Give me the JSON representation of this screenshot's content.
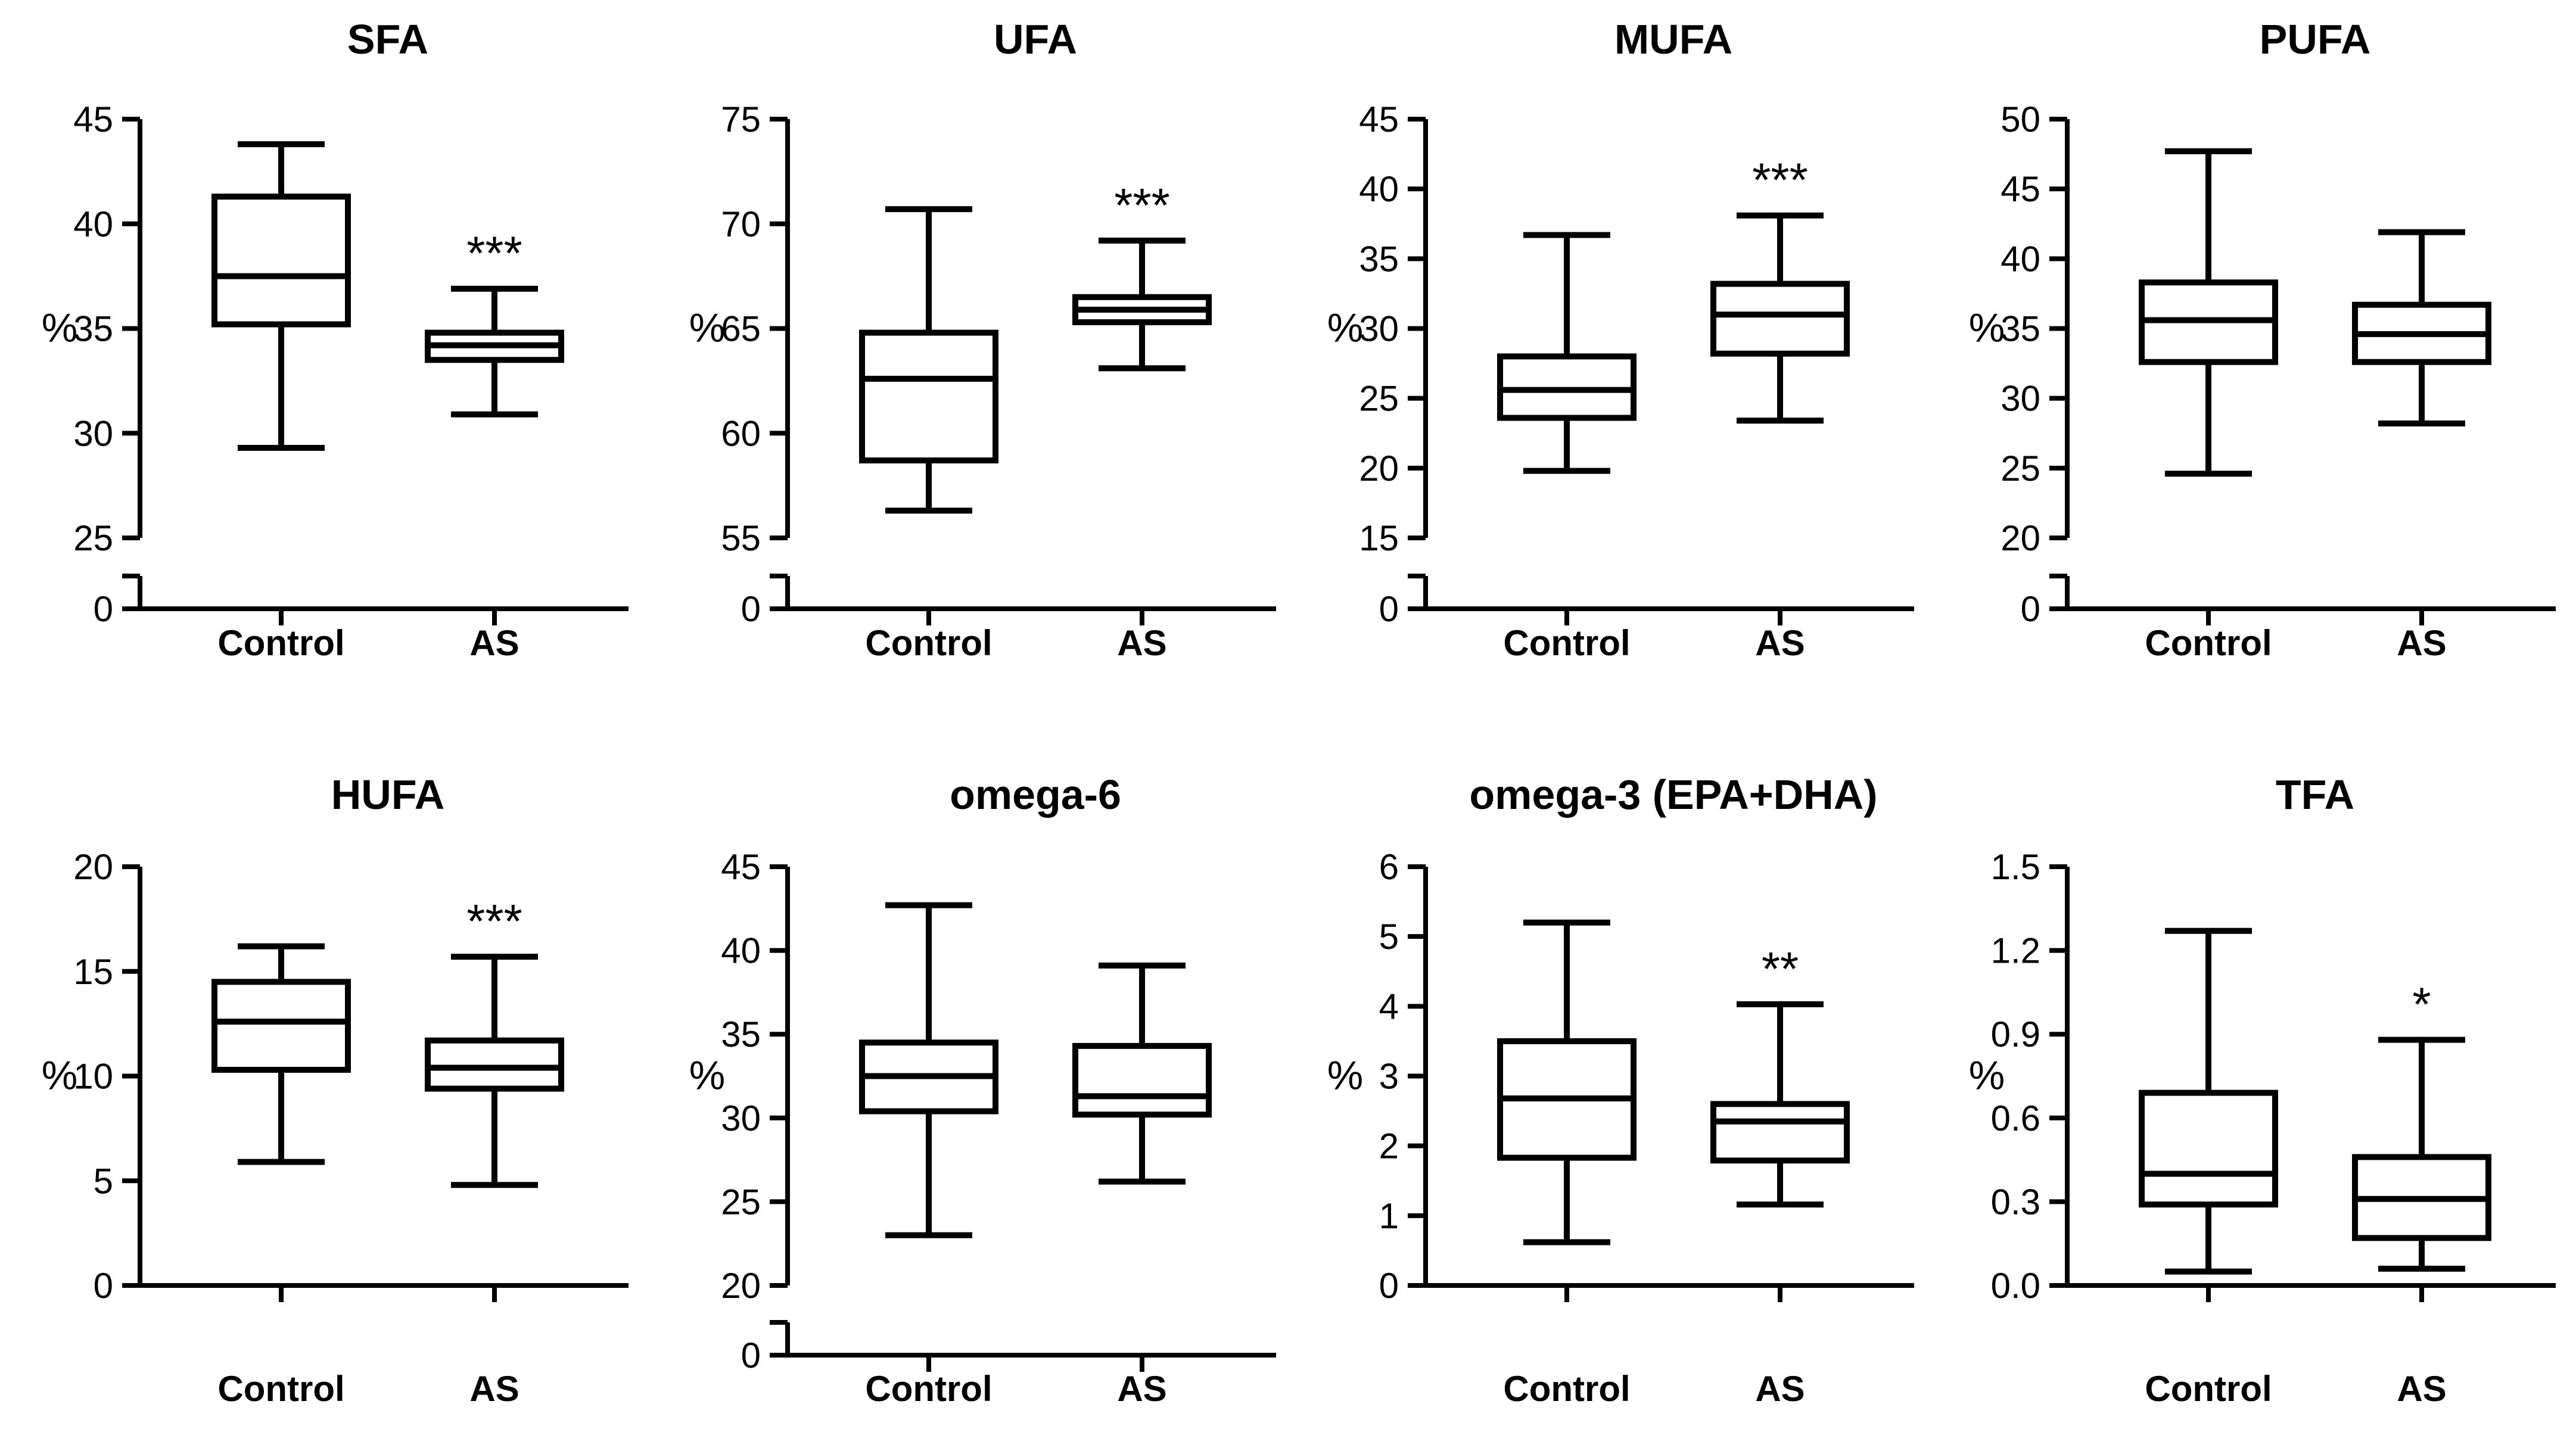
{
  "chart_data": [
    {
      "type": "box",
      "title": "SFA",
      "ylabel": "%",
      "categories": [
        "Control",
        "AS"
      ],
      "axis_break": true,
      "ylim": [
        25,
        45
      ],
      "yticks": [
        "45",
        "40",
        "35",
        "30",
        "25"
      ],
      "ytick_values": [
        45,
        40,
        35,
        30,
        25
      ],
      "zero_label": "0",
      "boxes": [
        {
          "name": "Control",
          "min": 29.3,
          "q1": 35.2,
          "median": 37.5,
          "q3": 41.3,
          "max": 43.8,
          "hatched": false
        },
        {
          "name": "AS",
          "min": 30.9,
          "q1": 33.5,
          "median": 34.2,
          "q3": 34.8,
          "max": 36.9,
          "hatched": true
        }
      ],
      "significance": [
        {
          "category": "AS",
          "label": "***"
        }
      ]
    },
    {
      "type": "box",
      "title": "UFA",
      "ylabel": "%",
      "categories": [
        "Control",
        "AS"
      ],
      "axis_break": true,
      "ylim": [
        55,
        75
      ],
      "yticks": [
        "75",
        "70",
        "65",
        "60",
        "55"
      ],
      "ytick_values": [
        75,
        70,
        65,
        60,
        55
      ],
      "zero_label": "0",
      "boxes": [
        {
          "name": "Control",
          "min": 56.3,
          "q1": 58.7,
          "median": 62.6,
          "q3": 64.8,
          "max": 70.7,
          "hatched": false
        },
        {
          "name": "AS",
          "min": 63.1,
          "q1": 65.3,
          "median": 65.9,
          "q3": 66.5,
          "max": 69.2,
          "hatched": true
        }
      ],
      "significance": [
        {
          "category": "AS",
          "label": "***"
        }
      ]
    },
    {
      "type": "box",
      "title": "MUFA",
      "ylabel": "%",
      "categories": [
        "Control",
        "AS"
      ],
      "axis_break": true,
      "ylim": [
        15,
        45
      ],
      "yticks": [
        "45",
        "40",
        "35",
        "30",
        "25",
        "20",
        "15"
      ],
      "ytick_values": [
        45,
        40,
        35,
        30,
        25,
        20,
        15
      ],
      "zero_label": "0",
      "boxes": [
        {
          "name": "Control",
          "min": 19.8,
          "q1": 23.6,
          "median": 25.6,
          "q3": 28.0,
          "max": 36.7,
          "hatched": false
        },
        {
          "name": "AS",
          "min": 23.4,
          "q1": 28.2,
          "median": 31.0,
          "q3": 33.2,
          "max": 38.1,
          "hatched": true
        }
      ],
      "significance": [
        {
          "category": "AS",
          "label": "***"
        }
      ]
    },
    {
      "type": "box",
      "title": "PUFA",
      "ylabel": "%",
      "categories": [
        "Control",
        "AS"
      ],
      "axis_break": true,
      "ylim": [
        20,
        50
      ],
      "yticks": [
        "50",
        "45",
        "40",
        "35",
        "30",
        "25",
        "20"
      ],
      "ytick_values": [
        50,
        45,
        40,
        35,
        30,
        25,
        20
      ],
      "zero_label": "0",
      "boxes": [
        {
          "name": "Control",
          "min": 24.6,
          "q1": 32.6,
          "median": 35.6,
          "q3": 38.3,
          "max": 47.7,
          "hatched": false
        },
        {
          "name": "AS",
          "min": 28.2,
          "q1": 32.6,
          "median": 34.6,
          "q3": 36.7,
          "max": 41.9,
          "hatched": true
        }
      ],
      "significance": []
    },
    {
      "type": "box",
      "title": "HUFA",
      "ylabel": "%",
      "categories": [
        "Control",
        "AS"
      ],
      "axis_break": false,
      "ylim": [
        0,
        20
      ],
      "yticks": [
        "20",
        "15",
        "10",
        "5",
        "0"
      ],
      "ytick_values": [
        20,
        15,
        10,
        5,
        0
      ],
      "zero_label": "",
      "boxes": [
        {
          "name": "Control",
          "min": 5.9,
          "q1": 10.3,
          "median": 12.6,
          "q3": 14.5,
          "max": 16.2,
          "hatched": false
        },
        {
          "name": "AS",
          "min": 4.8,
          "q1": 9.4,
          "median": 10.4,
          "q3": 11.7,
          "max": 15.7,
          "hatched": true
        }
      ],
      "significance": [
        {
          "category": "AS",
          "label": "***"
        }
      ]
    },
    {
      "type": "box",
      "title": "omega-6",
      "ylabel": "%",
      "categories": [
        "Control",
        "AS"
      ],
      "axis_break": true,
      "ylim": [
        20,
        45
      ],
      "yticks": [
        "45",
        "40",
        "35",
        "30",
        "25",
        "20"
      ],
      "ytick_values": [
        45,
        40,
        35,
        30,
        25,
        20
      ],
      "zero_label": "0",
      "boxes": [
        {
          "name": "Control",
          "min": 23.0,
          "q1": 30.4,
          "median": 32.5,
          "q3": 34.5,
          "max": 42.7,
          "hatched": false
        },
        {
          "name": "AS",
          "min": 26.2,
          "q1": 30.2,
          "median": 31.3,
          "q3": 34.3,
          "max": 39.1,
          "hatched": true
        }
      ],
      "significance": []
    },
    {
      "type": "box",
      "title": "omega-3 (EPA+DHA)",
      "ylabel": "%",
      "categories": [
        "Control",
        "AS"
      ],
      "axis_break": false,
      "ylim": [
        0,
        6
      ],
      "yticks": [
        "6",
        "5",
        "4",
        "3",
        "2",
        "1",
        "0"
      ],
      "ytick_values": [
        6,
        5,
        4,
        3,
        2,
        1,
        0
      ],
      "zero_label": "",
      "boxes": [
        {
          "name": "Control",
          "min": 0.62,
          "q1": 1.83,
          "median": 2.68,
          "q3": 3.5,
          "max": 5.2,
          "hatched": false
        },
        {
          "name": "AS",
          "min": 1.16,
          "q1": 1.79,
          "median": 2.35,
          "q3": 2.6,
          "max": 4.03,
          "hatched": true
        }
      ],
      "significance": [
        {
          "category": "AS",
          "label": "**"
        }
      ]
    },
    {
      "type": "box",
      "title": "TFA",
      "ylabel": "%",
      "categories": [
        "Control",
        "AS"
      ],
      "axis_break": false,
      "ylim": [
        0,
        1.5
      ],
      "yticks": [
        "1.5",
        "1.2",
        "0.9",
        "0.6",
        "0.3",
        "0.0"
      ],
      "ytick_values": [
        1.5,
        1.2,
        0.9,
        0.6,
        0.3,
        0.0
      ],
      "zero_label": "",
      "boxes": [
        {
          "name": "Control",
          "min": 0.05,
          "q1": 0.29,
          "median": 0.4,
          "q3": 0.69,
          "max": 1.27,
          "hatched": false
        },
        {
          "name": "AS",
          "min": 0.06,
          "q1": 0.17,
          "median": 0.31,
          "q3": 0.46,
          "max": 0.88,
          "hatched": true
        }
      ],
      "significance": [
        {
          "category": "AS",
          "label": "*"
        }
      ]
    }
  ]
}
